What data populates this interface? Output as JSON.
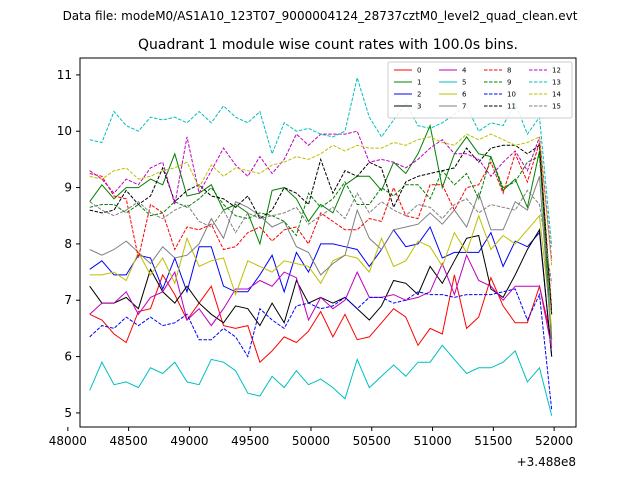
{
  "figure": {
    "suptitle": "Data file: modeM0/AS1A10_123T07_9000004124_28737cztM0_level2_quad_clean.evt"
  },
  "chart_data": {
    "type": "line",
    "title": "Quadrant 1 module wise count rates with 100.0s bins.",
    "xlabel": "",
    "ylabel": "",
    "x_offset_label": "+3.488e8",
    "xlim": [
      48100,
      52180
    ],
    "ylim": [
      4.75,
      11.3
    ],
    "xticks": [
      48000,
      48500,
      49000,
      49500,
      50000,
      50500,
      51000,
      51500,
      52000
    ],
    "xtick_labels": [
      "48000",
      "48500",
      "49000",
      "49500",
      "50000",
      "50500",
      "51000",
      "51500",
      "52000"
    ],
    "yticks": [
      5,
      6,
      7,
      8,
      9,
      10,
      11
    ],
    "ytick_labels": [
      "5",
      "6",
      "7",
      "8",
      "9",
      "10",
      "11"
    ],
    "grid": false,
    "legend_position": "top-right",
    "legend_columns": 4,
    "x": [
      48180,
      48280,
      48380,
      48480,
      48580,
      48680,
      48780,
      48880,
      48980,
      49080,
      49180,
      49280,
      49380,
      49480,
      49580,
      49680,
      49780,
      49880,
      49980,
      50080,
      50180,
      50280,
      50380,
      50480,
      50580,
      50680,
      50780,
      50880,
      50980,
      51080,
      51180,
      51280,
      51380,
      51480,
      51580,
      51680,
      51780,
      51880,
      51980
    ],
    "series": [
      {
        "name": "0",
        "color": "#ff0000",
        "dash": "solid",
        "values": [
          6.75,
          6.65,
          6.4,
          6.25,
          6.8,
          6.85,
          7.45,
          7.1,
          6.65,
          6.95,
          7.25,
          6.55,
          6.5,
          6.55,
          5.9,
          6.1,
          6.35,
          6.25,
          6.45,
          6.8,
          6.35,
          6.75,
          6.3,
          6.35,
          6.6,
          6.85,
          6.7,
          6.2,
          6.5,
          6.4,
          7.45,
          6.5,
          6.7,
          7.4,
          6.9,
          6.6,
          6.6,
          7.25,
          6.3
        ]
      },
      {
        "name": "1",
        "color": "#008000",
        "dash": "solid",
        "values": [
          8.75,
          9.05,
          8.8,
          9.0,
          9.0,
          9.15,
          9.05,
          9.6,
          8.85,
          8.9,
          9.05,
          8.6,
          8.7,
          8.55,
          8.0,
          8.95,
          9.0,
          8.8,
          8.4,
          8.7,
          8.55,
          9.05,
          9.2,
          9.2,
          8.95,
          9.45,
          9.25,
          9.6,
          10.1,
          9.0,
          9.6,
          9.9,
          9.6,
          9.55,
          8.95,
          9.15,
          8.65,
          9.65,
          6.3
        ]
      },
      {
        "name": "2",
        "color": "#0000ff",
        "dash": "solid",
        "values": [
          7.55,
          7.7,
          7.45,
          7.45,
          7.8,
          7.75,
          7.2,
          7.75,
          7.15,
          7.95,
          7.95,
          7.25,
          7.15,
          7.15,
          7.45,
          7.8,
          7.15,
          7.85,
          7.5,
          8.0,
          8.0,
          7.95,
          7.9,
          7.6,
          7.9,
          8.25,
          7.95,
          8.0,
          8.3,
          7.75,
          7.85,
          7.85,
          7.85,
          8.2,
          7.6,
          8.05,
          7.95,
          8.2,
          6.0
        ]
      },
      {
        "name": "3",
        "color": "#000000",
        "dash": "solid",
        "values": [
          7.25,
          6.95,
          6.95,
          7.05,
          6.85,
          7.55,
          7.15,
          6.95,
          7.25,
          6.95,
          6.75,
          6.6,
          6.9,
          6.85,
          6.55,
          6.95,
          6.6,
          7.35,
          6.95,
          7.05,
          6.95,
          7.05,
          6.85,
          6.65,
          6.9,
          7.35,
          7.3,
          7.1,
          7.6,
          7.3,
          7.7,
          8.1,
          8.15,
          7.2,
          7.05,
          7.45,
          7.9,
          8.25,
          6.0
        ]
      },
      {
        "name": "4",
        "color": "#bf00bf",
        "dash": "solid",
        "values": [
          6.75,
          6.95,
          6.95,
          7.15,
          6.75,
          7.05,
          7.15,
          7.5,
          6.65,
          6.85,
          6.55,
          6.85,
          7.2,
          7.2,
          7.35,
          7.25,
          7.5,
          7.4,
          6.65,
          7.05,
          6.85,
          7.0,
          7.5,
          7.05,
          7.05,
          7.1,
          7.0,
          7.05,
          7.15,
          7.65,
          7.1,
          7.8,
          7.35,
          7.25,
          7.0,
          7.25,
          7.25,
          7.25,
          6.15
        ]
      },
      {
        "name": "5",
        "color": "#00bfbf",
        "dash": "solid",
        "values": [
          5.4,
          5.9,
          5.5,
          5.55,
          5.45,
          5.8,
          5.7,
          5.9,
          5.55,
          5.5,
          5.95,
          5.9,
          5.75,
          5.35,
          5.3,
          5.65,
          5.45,
          5.75,
          5.5,
          5.6,
          5.45,
          5.25,
          5.95,
          5.45,
          5.65,
          5.85,
          5.65,
          5.9,
          5.9,
          6.2,
          5.95,
          5.7,
          5.8,
          5.8,
          5.9,
          6.1,
          5.55,
          5.8,
          4.95
        ]
      },
      {
        "name": "6",
        "color": "#bfbf00",
        "dash": "solid",
        "values": [
          7.45,
          7.45,
          7.5,
          7.35,
          7.85,
          7.45,
          7.75,
          7.3,
          8.1,
          7.6,
          7.7,
          7.75,
          7.1,
          7.7,
          7.6,
          7.5,
          7.7,
          7.65,
          7.6,
          7.3,
          7.7,
          7.8,
          7.75,
          7.5,
          8.1,
          7.6,
          7.7,
          8.05,
          7.95,
          7.6,
          8.2,
          7.85,
          8.5,
          7.9,
          8.15,
          8.0,
          8.25,
          8.5,
          6.5
        ]
      },
      {
        "name": "7",
        "color": "#808080",
        "dash": "solid",
        "values": [
          7.9,
          7.8,
          7.9,
          8.05,
          7.85,
          7.65,
          7.95,
          7.75,
          7.8,
          8.0,
          8.45,
          8.1,
          8.75,
          8.65,
          8.5,
          8.3,
          8.4,
          7.95,
          7.85,
          7.45,
          7.65,
          7.8,
          8.6,
          8.1,
          7.9,
          8.25,
          8.3,
          8.35,
          8.55,
          8.35,
          8.6,
          8.3,
          8.9,
          8.25,
          8.25,
          8.75,
          8.6,
          9.2,
          6.2
        ]
      },
      {
        "name": "8",
        "color": "#ff0000",
        "dash": "dashed",
        "values": [
          9.25,
          9.2,
          8.85,
          8.8,
          7.75,
          8.7,
          8.55,
          7.9,
          8.3,
          8.25,
          8.35,
          7.9,
          7.95,
          8.2,
          8.3,
          8.05,
          8.25,
          8.3,
          8.0,
          8.55,
          8.4,
          8.25,
          8.25,
          8.45,
          8.4,
          9.0,
          8.5,
          8.45,
          9.05,
          9.05,
          8.6,
          9.0,
          9.05,
          9.45,
          8.9,
          9.6,
          9.1,
          9.8,
          6.85
        ]
      },
      {
        "name": "9",
        "color": "#008000",
        "dash": "dashed",
        "values": [
          8.65,
          8.7,
          8.7,
          8.55,
          8.7,
          8.5,
          8.55,
          8.75,
          8.65,
          8.8,
          9.0,
          8.7,
          8.5,
          8.45,
          8.55,
          8.5,
          8.4,
          8.15,
          8.9,
          8.65,
          8.8,
          9.1,
          8.7,
          8.7,
          9.0,
          8.85,
          9.05,
          9.05,
          8.8,
          9.3,
          9.05,
          9.25,
          8.8,
          9.55,
          9.0,
          9.1,
          9.45,
          9.55,
          6.75
        ]
      },
      {
        "name": "10",
        "color": "#0000ff",
        "dash": "dashed",
        "values": [
          6.35,
          6.55,
          6.5,
          6.7,
          6.55,
          6.7,
          6.55,
          6.6,
          6.75,
          6.3,
          6.3,
          6.5,
          6.35,
          6.0,
          6.85,
          6.65,
          6.5,
          6.9,
          6.95,
          6.85,
          6.9,
          7.05,
          6.85,
          7.05,
          7.05,
          6.95,
          7.0,
          7.15,
          7.1,
          7.1,
          7.05,
          7.1,
          7.1,
          7.1,
          7.15,
          7.2,
          6.65,
          7.1,
          5.05
        ]
      },
      {
        "name": "11",
        "color": "#000000",
        "dash": "dashed",
        "values": [
          8.6,
          8.55,
          8.6,
          8.95,
          8.7,
          8.85,
          9.35,
          8.75,
          8.95,
          9.05,
          8.85,
          8.8,
          8.65,
          8.85,
          8.45,
          8.6,
          9.0,
          8.9,
          8.7,
          9.5,
          8.9,
          9.3,
          9.2,
          9.45,
          9.35,
          8.65,
          9.1,
          9.2,
          9.25,
          9.3,
          9.35,
          9.7,
          9.45,
          9.7,
          9.75,
          9.75,
          9.6,
          9.75,
          6.75
        ]
      },
      {
        "name": "12",
        "color": "#bf00bf",
        "dash": "dashed",
        "values": [
          9.3,
          9.15,
          8.9,
          9.15,
          9.05,
          9.35,
          9.45,
          8.7,
          9.9,
          8.9,
          9.3,
          9.7,
          9.4,
          9.2,
          9.55,
          9.25,
          9.5,
          9.95,
          9.75,
          9.95,
          9.95,
          9.95,
          10.0,
          9.45,
          9.5,
          9.45,
          9.35,
          9.5,
          9.7,
          9.85,
          9.6,
          9.6,
          9.5,
          9.2,
          9.45,
          9.65,
          9.3,
          9.9,
          7.7
        ]
      },
      {
        "name": "13",
        "color": "#00bfbf",
        "dash": "dashed",
        "values": [
          9.85,
          9.8,
          10.35,
          10.1,
          10.0,
          10.25,
          10.2,
          10.25,
          10.15,
          10.35,
          10.15,
          10.45,
          10.25,
          10.15,
          10.35,
          9.6,
          10.15,
          10.0,
          10.05,
          9.95,
          9.9,
          10.0,
          10.95,
          10.25,
          9.9,
          10.2,
          10.5,
          10.1,
          10.05,
          10.15,
          10.3,
          10.45,
          10.0,
          10.15,
          10.1,
          10.5,
          9.95,
          10.25,
          7.95
        ]
      },
      {
        "name": "14",
        "color": "#bfbf00",
        "dash": "dashed",
        "values": [
          9.2,
          9.15,
          9.3,
          9.35,
          9.15,
          9.2,
          9.3,
          9.35,
          9.45,
          9.0,
          9.4,
          9.2,
          9.35,
          9.3,
          9.25,
          9.4,
          9.45,
          9.55,
          9.5,
          9.6,
          9.75,
          9.65,
          9.75,
          9.7,
          9.7,
          9.8,
          9.75,
          9.85,
          9.9,
          9.8,
          9.75,
          9.95,
          9.85,
          9.95,
          9.85,
          9.75,
          9.8,
          9.9,
          7.6
        ]
      },
      {
        "name": "15",
        "color": "#808080",
        "dash": "dashed",
        "values": [
          8.75,
          8.6,
          8.5,
          8.6,
          8.75,
          8.55,
          8.45,
          8.6,
          8.7,
          8.4,
          8.3,
          8.6,
          8.2,
          8.55,
          8.45,
          8.5,
          8.55,
          8.65,
          8.35,
          8.5,
          8.65,
          8.45,
          8.9,
          8.55,
          8.75,
          8.6,
          8.5,
          8.7,
          8.65,
          8.45,
          8.7,
          8.8,
          8.55,
          8.7,
          8.65,
          8.6,
          8.95,
          8.7,
          7.3
        ]
      }
    ]
  }
}
